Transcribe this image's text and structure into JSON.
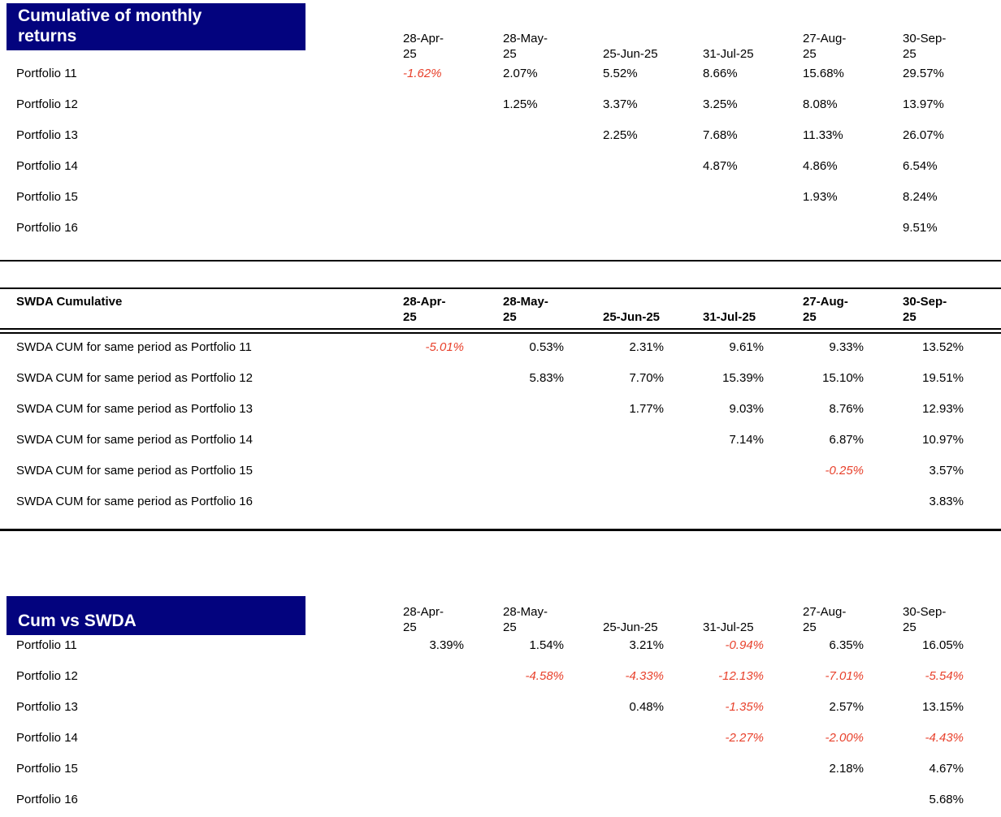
{
  "colors": {
    "title_box_navy": "#03037E",
    "title_text_white": "#FFFFFF",
    "negative_value_red": "#E8412C",
    "text_black": "#000000",
    "rule_black": "#000000"
  },
  "columns": [
    {
      "label": "28-Apr-25",
      "lines": [
        "28-Apr-",
        "25"
      ]
    },
    {
      "label": "28-May-25",
      "lines": [
        "28-May-",
        "25"
      ]
    },
    {
      "label": "25-Jun-25",
      "lines": [
        "25-Jun-25"
      ]
    },
    {
      "label": "31-Jul-25",
      "lines": [
        "31-Jul-25"
      ]
    },
    {
      "label": "27-Aug-25",
      "lines": [
        "27-Aug-",
        "25"
      ]
    },
    {
      "label": "30-Sep-25",
      "lines": [
        "30-Sep-",
        "25"
      ]
    }
  ],
  "tables": [
    {
      "id": "cumulative-monthly-returns",
      "title": "Cumulative of monthly returns",
      "title_style": "navy-box",
      "header_bold": false,
      "values_align": "left",
      "rows": [
        {
          "label": "Portfolio 11",
          "values": [
            "-1.62%",
            "2.07%",
            "5.52%",
            "8.66%",
            "15.68%",
            "29.57%"
          ]
        },
        {
          "label": "Portfolio 12",
          "values": [
            "",
            "1.25%",
            "3.37%",
            "3.25%",
            "8.08%",
            "13.97%"
          ]
        },
        {
          "label": "Portfolio 13",
          "values": [
            "",
            "",
            "2.25%",
            "7.68%",
            "11.33%",
            "26.07%"
          ]
        },
        {
          "label": "Portfolio 14",
          "values": [
            "",
            "",
            "",
            "4.87%",
            "4.86%",
            "6.54%"
          ]
        },
        {
          "label": "Portfolio 15",
          "values": [
            "",
            "",
            "",
            "",
            "1.93%",
            "8.24%"
          ]
        },
        {
          "label": "Portfolio 16",
          "values": [
            "",
            "",
            "",
            "",
            "",
            "9.51%"
          ]
        }
      ]
    },
    {
      "id": "swda-cumulative",
      "title": "SWDA Cumulative",
      "title_style": "bold-text",
      "header_bold": true,
      "values_align": "right",
      "rows": [
        {
          "label": "SWDA CUM for same period as Portfolio 11",
          "values": [
            "-5.01%",
            "0.53%",
            "2.31%",
            "9.61%",
            "9.33%",
            "13.52%"
          ]
        },
        {
          "label": "SWDA CUM for same period as Portfolio 12",
          "values": [
            "",
            "5.83%",
            "7.70%",
            "15.39%",
            "15.10%",
            "19.51%"
          ]
        },
        {
          "label": "SWDA CUM for same period as Portfolio 13",
          "values": [
            "",
            "",
            "1.77%",
            "9.03%",
            "8.76%",
            "12.93%"
          ]
        },
        {
          "label": "SWDA CUM for same period as Portfolio 14",
          "values": [
            "",
            "",
            "",
            "7.14%",
            "6.87%",
            "10.97%"
          ]
        },
        {
          "label": "SWDA CUM for same period as Portfolio 15",
          "values": [
            "",
            "",
            "",
            "",
            "-0.25%",
            "3.57%"
          ]
        },
        {
          "label": "SWDA CUM for same period as Portfolio 16",
          "values": [
            "",
            "",
            "",
            "",
            "",
            "3.83%"
          ]
        }
      ]
    },
    {
      "id": "cum-vs-swda",
      "title": "Cum vs SWDA",
      "title_style": "navy-box",
      "header_bold": false,
      "values_align": "right",
      "rows": [
        {
          "label": "Portfolio 11",
          "values": [
            "3.39%",
            "1.54%",
            "3.21%",
            "-0.94%",
            "6.35%",
            "16.05%"
          ]
        },
        {
          "label": "Portfolio 12",
          "values": [
            "",
            "-4.58%",
            "-4.33%",
            "-12.13%",
            "-7.01%",
            "-5.54%"
          ]
        },
        {
          "label": "Portfolio 13",
          "values": [
            "",
            "",
            "0.48%",
            "-1.35%",
            "2.57%",
            "13.15%"
          ]
        },
        {
          "label": "Portfolio 14",
          "values": [
            "",
            "",
            "",
            "-2.27%",
            "-2.00%",
            "-4.43%"
          ]
        },
        {
          "label": "Portfolio 15",
          "values": [
            "",
            "",
            "",
            "",
            "2.18%",
            "4.67%"
          ]
        },
        {
          "label": "Portfolio 16",
          "values": [
            "",
            "",
            "",
            "",
            "",
            "5.68%"
          ]
        }
      ]
    }
  ]
}
